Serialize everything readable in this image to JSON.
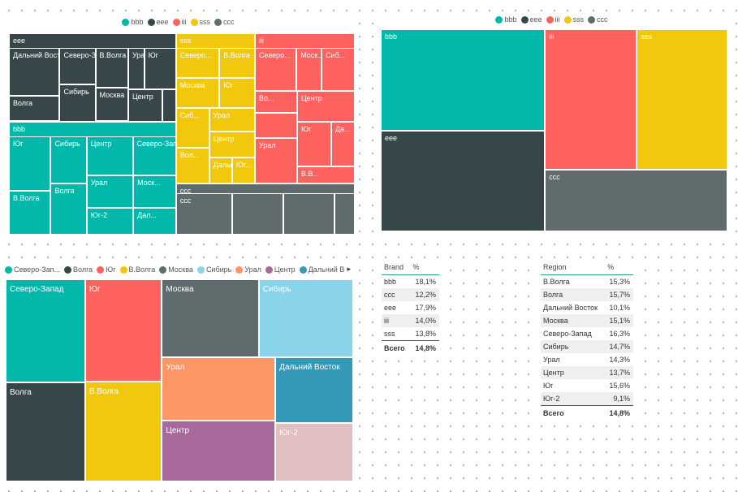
{
  "chart_data": [
    {
      "type": "treemap",
      "legend_position": "top-center",
      "legend": [
        {
          "name": "bbb",
          "color": "#01b8aa"
        },
        {
          "name": "eee",
          "color": "#374649"
        },
        {
          "name": "iii",
          "color": "#fd625e"
        },
        {
          "name": "sss",
          "color": "#f2c80f"
        },
        {
          "name": "ccc",
          "color": "#5f6b6d"
        }
      ],
      "groups": [
        {
          "name": "eee",
          "color": "#374649",
          "items": [
            {
              "label": "Дальний Восток",
              "value": 2.2
            },
            {
              "label": "Волга",
              "value": 1.2
            },
            {
              "label": "Северо-Запад",
              "value": 1.2
            },
            {
              "label": "Сибирь",
              "value": 1.2
            },
            {
              "label": "В.Волга",
              "value": 1.2
            },
            {
              "label": "Москва",
              "value": 1.0
            },
            {
              "label": "Урал",
              "value": 0.6
            },
            {
              "label": "Юг",
              "value": 1.2
            },
            {
              "label": "Центр",
              "value": 1.0
            },
            {
              "label": "",
              "value": 0.4
            }
          ]
        },
        {
          "name": "bbb",
          "color": "#01b8aa",
          "items": [
            {
              "label": "Юг",
              "value": 2.0
            },
            {
              "label": "В.Волга",
              "value": 1.6
            },
            {
              "label": "Сибирь",
              "value": 1.5
            },
            {
              "label": "Волга",
              "value": 1.6
            },
            {
              "label": "Центр",
              "value": 1.6
            },
            {
              "label": "Северо-Запад",
              "value": 1.5
            },
            {
              "label": "Урал",
              "value": 1.3
            },
            {
              "label": "Юг-2",
              "value": 1.1
            },
            {
              "label": "Моск...",
              "value": 1.2
            },
            {
              "label": "Дал...",
              "value": 1.0
            }
          ]
        },
        {
          "name": "sss",
          "color": "#f2c80f",
          "items": [
            {
              "label": "Северо...",
              "value": 1.1
            },
            {
              "label": "В.Волга",
              "value": 0.9
            },
            {
              "label": "Москва",
              "value": 1.1
            },
            {
              "label": "Юг",
              "value": 0.9
            },
            {
              "label": "Сиб...",
              "value": 1.1
            },
            {
              "label": "Вол...",
              "value": 1.0
            },
            {
              "label": "Урал",
              "value": 0.9
            },
            {
              "label": "Центр",
              "value": 1.0
            },
            {
              "label": "Дальний Во...",
              "value": 0.5
            },
            {
              "label": "Юг...",
              "value": 0.5
            }
          ]
        },
        {
          "name": "iii",
          "color": "#fd625e",
          "items": [
            {
              "label": "Северо...",
              "value": 1.5
            },
            {
              "label": "Моск...",
              "value": 0.9
            },
            {
              "label": "Сиб...",
              "value": 1.2
            },
            {
              "label": "Во...",
              "value": 0.8
            },
            {
              "label": "",
              "value": 0.9
            },
            {
              "label": "Урал",
              "value": 1.6
            },
            {
              "label": "Центр",
              "value": 1.5
            },
            {
              "label": "Юг",
              "value": 1.3
            },
            {
              "label": "Да...",
              "value": 0.9
            },
            {
              "label": "В.В...",
              "value": 0.8
            }
          ]
        },
        {
          "name": "ccc",
          "color": "#5f6b6d",
          "items": [
            {
              "label": "ccc",
              "value": 2.2
            },
            {
              "label": "",
              "value": 2.0
            },
            {
              "label": "",
              "value": 2.0
            },
            {
              "label": "",
              "value": 0.8
            }
          ]
        }
      ]
    },
    {
      "type": "treemap",
      "legend_position": "top-center",
      "legend": [
        {
          "name": "bbb",
          "color": "#01b8aa"
        },
        {
          "name": "eee",
          "color": "#374649"
        },
        {
          "name": "iii",
          "color": "#fd625e"
        },
        {
          "name": "sss",
          "color": "#f2c80f"
        },
        {
          "name": "ccc",
          "color": "#5f6b6d"
        }
      ],
      "items": [
        {
          "label": "bbb",
          "value": 18.1,
          "color": "#01b8aa"
        },
        {
          "label": "eee",
          "value": 17.9,
          "color": "#374649"
        },
        {
          "label": "iii",
          "value": 14.0,
          "color": "#fd625e"
        },
        {
          "label": "sss",
          "value": 13.8,
          "color": "#f2c80f"
        },
        {
          "label": "ccc",
          "value": 12.2,
          "color": "#5f6b6d"
        }
      ]
    },
    {
      "type": "treemap",
      "legend_position": "top-left",
      "legend": [
        {
          "name": "Северо-Зап...",
          "color": "#01b8aa"
        },
        {
          "name": "Волга",
          "color": "#374649"
        },
        {
          "name": "Юг",
          "color": "#fd625e"
        },
        {
          "name": "В.Волга",
          "color": "#f2c80f"
        },
        {
          "name": "Москва",
          "color": "#5f6b6d"
        },
        {
          "name": "Сибирь",
          "color": "#8ad4eb"
        },
        {
          "name": "Урал",
          "color": "#fe9666"
        },
        {
          "name": "Центр",
          "color": "#a66999"
        },
        {
          "name": "Дальний В...",
          "color": "#3599b8"
        }
      ],
      "items": [
        {
          "label": "Северо-Запад",
          "value": 16.3,
          "color": "#01b8aa"
        },
        {
          "label": "Волга",
          "value": 15.7,
          "color": "#374649"
        },
        {
          "label": "Юг",
          "value": 15.6,
          "color": "#fd625e"
        },
        {
          "label": "В.Волга",
          "value": 15.3,
          "color": "#f2c80f"
        },
        {
          "label": "Москва",
          "value": 15.1,
          "color": "#5f6b6d"
        },
        {
          "label": "Сибирь",
          "value": 14.7,
          "color": "#8ad4eb"
        },
        {
          "label": "Урал",
          "value": 14.3,
          "color": "#fe9666"
        },
        {
          "label": "Центр",
          "value": 13.7,
          "color": "#a66999"
        },
        {
          "label": "Дальний Восток",
          "value": 10.1,
          "color": "#3599b8"
        },
        {
          "label": "Юг-2",
          "value": 9.1,
          "color": "#dfbfbf"
        }
      ]
    },
    {
      "type": "table",
      "columns": [
        "Brand",
        "%"
      ],
      "rows": [
        [
          "bbb",
          "18,1%"
        ],
        [
          "ccc",
          "12,2%"
        ],
        [
          "eee",
          "17,9%"
        ],
        [
          "iii",
          "14,0%"
        ],
        [
          "sss",
          "13,8%"
        ]
      ],
      "total": [
        "Всего",
        "14,8%"
      ]
    },
    {
      "type": "table",
      "columns": [
        "Region",
        "%"
      ],
      "rows": [
        [
          "В.Волга",
          "15,3%"
        ],
        [
          "Волга",
          "15,7%"
        ],
        [
          "Дальний Восток",
          "10,1%"
        ],
        [
          "Москва",
          "15,1%"
        ],
        [
          "Северо-Запад",
          "16,3%"
        ],
        [
          "Сибирь",
          "14,7%"
        ],
        [
          "Урал",
          "14,3%"
        ],
        [
          "Центр",
          "13,7%"
        ],
        [
          "Юг",
          "15,6%"
        ],
        [
          "Юг-2",
          "9,1%"
        ]
      ],
      "total": [
        "Всего",
        "14,8%"
      ]
    }
  ]
}
